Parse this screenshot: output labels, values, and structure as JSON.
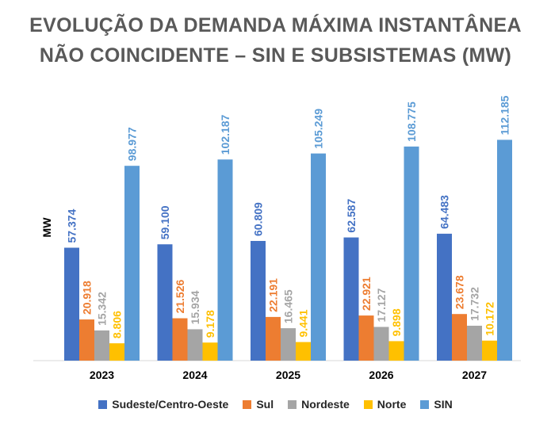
{
  "title_line1": "EVOLUÇÃO DA DEMANDA MÁXIMA INSTANTÂNEA",
  "title_line2": "NÃO COINCIDENTE – SIN E SUBSISTEMAS (MW)",
  "chart_data": {
    "type": "bar",
    "title": "EVOLUÇÃO DA DEMANDA MÁXIMA INSTANTÂNEA NÃO COINCIDENTE – SIN E SUBSISTEMAS (MW)",
    "ylabel": "MW",
    "xlabel": "",
    "ylim": [
      0,
      120000
    ],
    "grid": false,
    "legend_position": "bottom",
    "categories": [
      "2023",
      "2024",
      "2025",
      "2026",
      "2027"
    ],
    "series": [
      {
        "name": "Sudeste/Centro-Oeste",
        "color": "#4472C4",
        "label_color": "#4472C4",
        "values": [
          57374,
          59100,
          60809,
          62587,
          64483
        ],
        "labels": [
          "57.374",
          "59.100",
          "60.809",
          "62.587",
          "64.483"
        ]
      },
      {
        "name": "Sul",
        "color": "#ED7D31",
        "label_color": "#ED7D31",
        "values": [
          20918,
          21526,
          22191,
          22921,
          23678
        ],
        "labels": [
          "20.918",
          "21.526",
          "22.191",
          "22.921",
          "23.678"
        ]
      },
      {
        "name": "Nordeste",
        "color": "#A5A5A5",
        "label_color": "#A5A5A5",
        "values": [
          15342,
          15934,
          16465,
          17127,
          17732
        ],
        "labels": [
          "15.342",
          "15.934",
          "16.465",
          "17.127",
          "17.732"
        ]
      },
      {
        "name": "Norte",
        "color": "#FFC000",
        "label_color": "#FFC000",
        "values": [
          8806,
          9178,
          9441,
          9898,
          10172
        ],
        "labels": [
          "8.806",
          "9.178",
          "9.441",
          "9.898",
          "10.172"
        ]
      },
      {
        "name": "SIN",
        "color": "#5B9BD5",
        "label_color": "#5B9BD5",
        "values": [
          98977,
          102187,
          105249,
          108775,
          112185
        ],
        "labels": [
          "98.977",
          "102.187",
          "105.249",
          "108.775",
          "112.185"
        ]
      }
    ]
  }
}
